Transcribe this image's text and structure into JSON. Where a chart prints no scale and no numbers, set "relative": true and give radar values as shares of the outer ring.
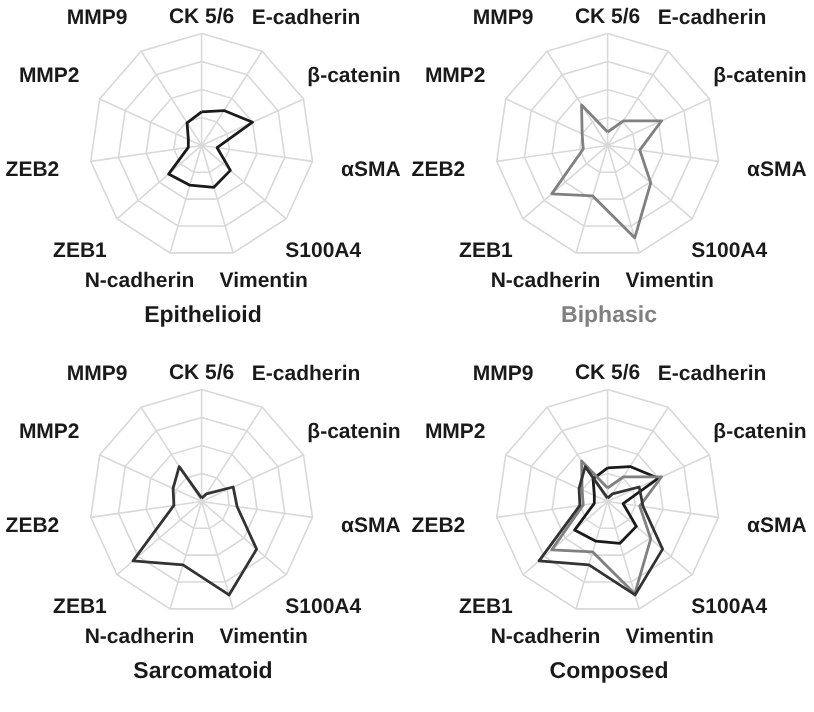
{
  "chart_data": [
    {
      "type": "radar",
      "title": "Epithelioid",
      "relative": true,
      "grid": true,
      "categories": [
        "CK 5/6",
        "E-cadherin",
        "β-catenin",
        "αSMA",
        "S100A4",
        "Vimentin",
        "N-cadherin",
        "ZEB1",
        "ZEB2",
        "MMP2",
        "MMP9"
      ],
      "series": [
        {
          "color": "#1a1a1a",
          "values": [
            0.3,
            0.37,
            0.5,
            0.14,
            0.34,
            0.39,
            0.37,
            0.39,
            0.12,
            0.13,
            0.24
          ]
        }
      ]
    },
    {
      "type": "radar",
      "title": "Biphasic",
      "relative": true,
      "grid": true,
      "categories": [
        "CK 5/6",
        "E-cadherin",
        "β-catenin",
        "αSMA",
        "S100A4",
        "Vimentin",
        "N-cadherin",
        "ZEB1",
        "ZEB2",
        "MMP2",
        "MMP9"
      ],
      "series": [
        {
          "color": "#808080",
          "values": [
            0.12,
            0.26,
            0.53,
            0.29,
            0.51,
            0.86,
            0.47,
            0.66,
            0.22,
            0.25,
            0.43
          ]
        }
      ]
    },
    {
      "type": "radar",
      "title": "Sarcomatoid",
      "relative": true,
      "grid": true,
      "categories": [
        "CK 5/6",
        "E-cadherin",
        "β-catenin",
        "αSMA",
        "S100A4",
        "Vimentin",
        "N-cadherin",
        "ZEB1",
        "ZEB2",
        "MMP2",
        "MMP9"
      ],
      "series": [
        {
          "color": "#333333",
          "values": [
            0.03,
            0.08,
            0.31,
            0.32,
            0.65,
            0.87,
            0.59,
            0.81,
            0.25,
            0.28,
            0.37
          ]
        }
      ]
    },
    {
      "type": "radar",
      "title": "Composed",
      "relative": true,
      "grid": true,
      "categories": [
        "CK 5/6",
        "E-cadherin",
        "β-catenin",
        "αSMA",
        "S100A4",
        "Vimentin",
        "N-cadherin",
        "ZEB1",
        "ZEB2",
        "MMP2",
        "MMP9"
      ],
      "series": [
        {
          "color": "#1a1a1a",
          "values": [
            0.3,
            0.37,
            0.5,
            0.14,
            0.34,
            0.39,
            0.37,
            0.39,
            0.12,
            0.13,
            0.24
          ]
        },
        {
          "color": "#808080",
          "values": [
            0.12,
            0.26,
            0.53,
            0.29,
            0.51,
            0.86,
            0.47,
            0.66,
            0.22,
            0.25,
            0.43
          ]
        },
        {
          "color": "#333333",
          "values": [
            0.03,
            0.08,
            0.31,
            0.32,
            0.65,
            0.87,
            0.59,
            0.81,
            0.25,
            0.28,
            0.37
          ]
        }
      ]
    }
  ]
}
